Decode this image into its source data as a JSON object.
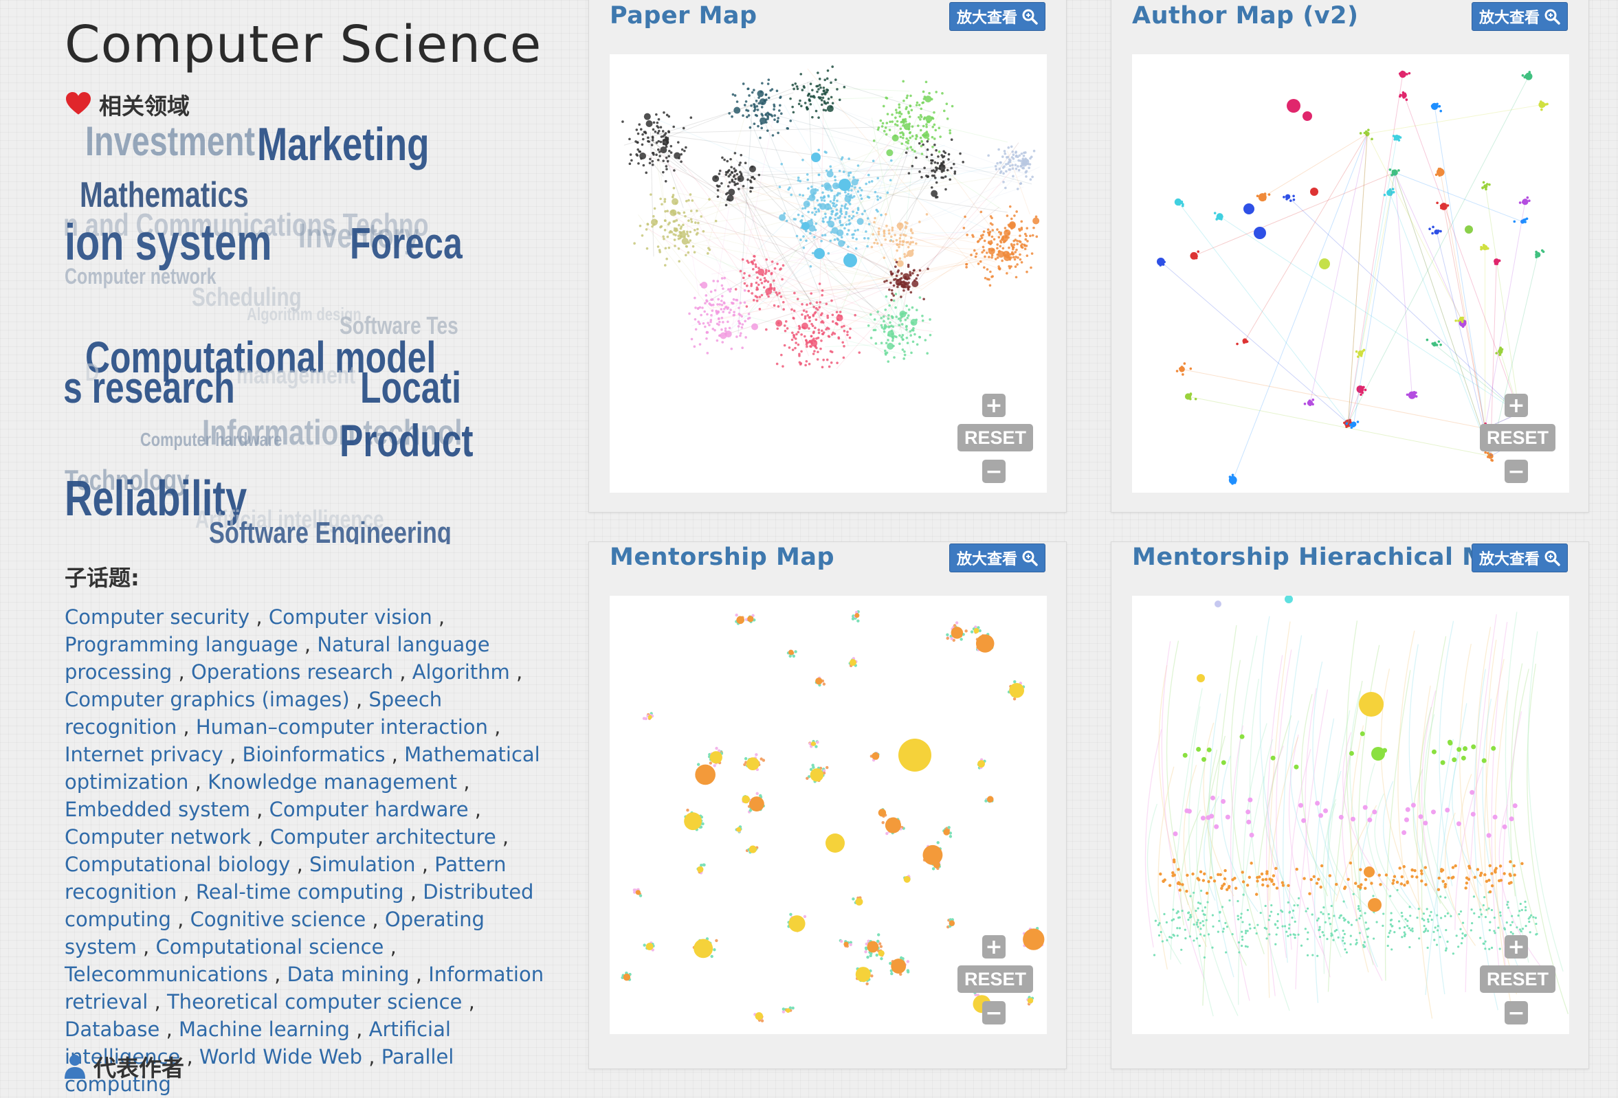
{
  "page": {
    "title": "Computer Science"
  },
  "related": {
    "label": "相关领域"
  },
  "word_cloud": [
    "Investment",
    "Marketing",
    "Mathematics",
    "n and Communications Techno",
    "ion system",
    "Inventory",
    "Foreca",
    "Computer network",
    "Scheduling",
    "Algorithm design",
    "Software Tes",
    "Computational model",
    "D",
    "management",
    "s research",
    "Locati",
    "Information technol",
    "Computer hardware",
    "Product",
    "Technology",
    "Reliability",
    "Artificial intelligence",
    "Software Engineering"
  ],
  "subtopics": {
    "title": "子话题:",
    "items": [
      "Computer security",
      "Computer vision",
      "Programming language",
      "Natural language processing",
      "Operations research",
      "Algorithm",
      "Computer graphics (images)",
      "Speech recognition",
      "Human–computer interaction",
      "Internet privacy",
      "Bioinformatics",
      "Mathematical optimization",
      "Knowledge management",
      "Embedded system",
      "Computer hardware",
      "Computer network",
      "Computer architecture",
      "Computational biology",
      "Simulation",
      "Pattern recognition",
      "Real-time computing",
      "Distributed computing",
      "Cognitive science",
      "Operating system",
      "Computational science",
      "Telecommunications",
      "Data mining",
      "Information retrieval",
      "Theoretical computer science",
      "Database",
      "Machine learning",
      "Artificial intelligence",
      "World Wide Web",
      "Parallel computing"
    ]
  },
  "representative_authors": {
    "label": "代表作者"
  },
  "panels": [
    {
      "title": "Paper Map",
      "zoom_label": "放大查看",
      "reset_label": "RESET",
      "plus_label": "+",
      "minus_label": "−"
    },
    {
      "title": "Author Map (v2)",
      "zoom_label": "放大查看",
      "reset_label": "RESET",
      "plus_label": "+",
      "minus_label": "−"
    },
    {
      "title": "Mentorship Map",
      "zoom_label": "放大查看",
      "reset_label": "RESET",
      "plus_label": "+",
      "minus_label": "−"
    },
    {
      "title": "Mentorship Hierachical Map",
      "zoom_label": "放大查看",
      "reset_label": "RESET",
      "plus_label": "+",
      "minus_label": "−"
    }
  ],
  "colors": {
    "link": "#2f6aa8",
    "panel_title": "#3e78ae",
    "button": "#3d7ac1",
    "heart": "#e0262b"
  }
}
